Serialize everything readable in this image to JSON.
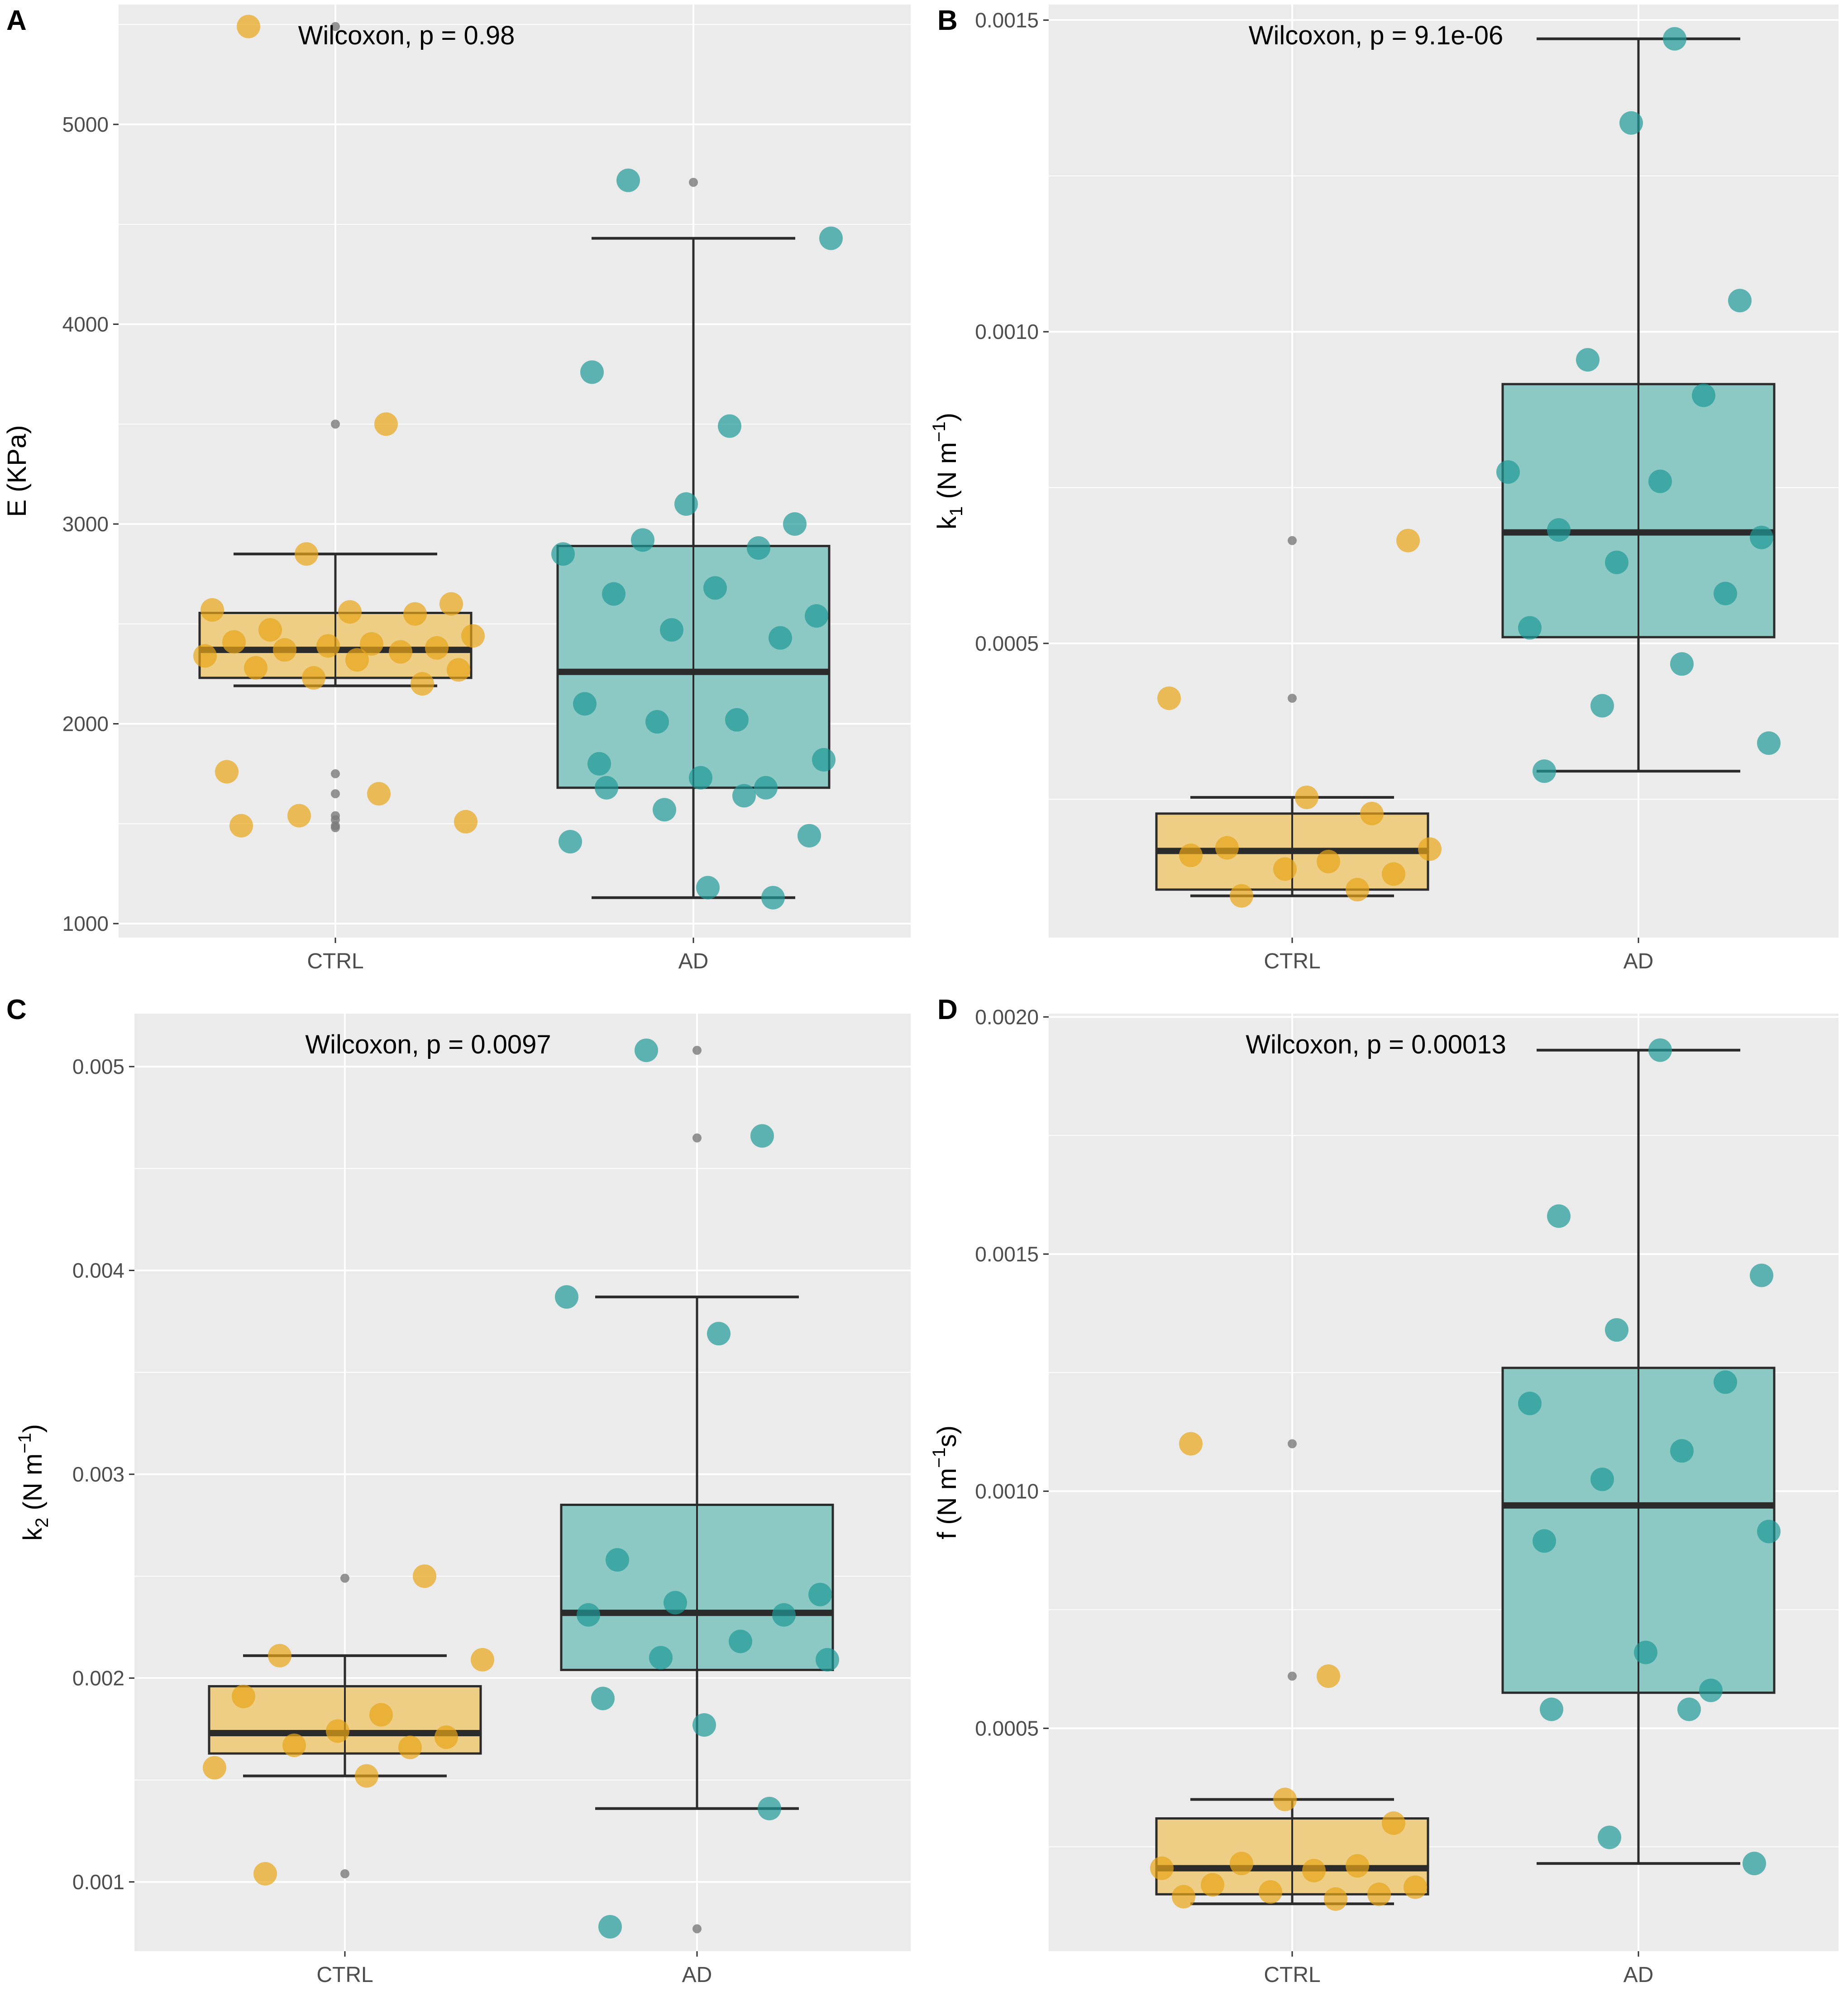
{
  "figure": {
    "panels": [
      {
        "letter": "A",
        "y_label": "E (KPa)",
        "y_label_sub": "",
        "y_label_sup": "",
        "y_label_tail": "",
        "annotation": "Wilcoxon, p = 0.98"
      },
      {
        "letter": "B",
        "y_label": "k",
        "y_label_sub": "1",
        "y_label_mid": " (N m",
        "y_label_sup": "−1",
        "y_label_tail": ")",
        "annotation": "Wilcoxon, p = 9.1e-06"
      },
      {
        "letter": "C",
        "y_label": "k",
        "y_label_sub": "2",
        "y_label_mid": " (N m",
        "y_label_sup": "−1",
        "y_label_tail": ")",
        "annotation": "Wilcoxon, p = 0.0097"
      },
      {
        "letter": "D",
        "y_label": "f",
        "y_label_sub": "",
        "y_label_mid": " (N m",
        "y_label_sup": "−1",
        "y_label_tail": "s)",
        "annotation": "Wilcoxon, p = 0.00013"
      }
    ]
  },
  "colors": {
    "ctrl": "#E8A517",
    "ctrl_box": "#EECD85",
    "ad": "#1F9A97",
    "ad_box": "#8CC8C4",
    "panel_bg": "#EBEBEB",
    "grid": "#FFFFFF",
    "outlier": "#7A7A7A",
    "line": "#2B2B2B"
  },
  "chart_data": [
    {
      "type": "box+jitter",
      "title": "Wilcoxon, p = 0.98",
      "ylabel": "E (KPa)",
      "categories": [
        "CTRL",
        "AD"
      ],
      "ylim": [
        930,
        5600
      ],
      "yticks": [
        1000,
        2000,
        3000,
        4000,
        5000
      ],
      "ytick_labels": [
        "1000",
        "2000",
        "3000",
        "4000",
        "5000"
      ],
      "boxes": [
        {
          "group": "CTRL",
          "lower_whisker": 2190,
          "q1": 2230,
          "median": 2370,
          "q3": 2555,
          "upper_whisker": 2850,
          "outliers": [
            5490,
            3500,
            1750,
            1650,
            1540,
            1520,
            1490,
            1480
          ]
        },
        {
          "group": "AD",
          "lower_whisker": 1130,
          "q1": 1680,
          "median": 2260,
          "q3": 2890,
          "upper_whisker": 4430,
          "outliers": [
            4710
          ]
        }
      ],
      "points": [
        {
          "group": "CTRL",
          "values": [
            5490,
            3500,
            2850,
            2600,
            2570,
            2560,
            2550,
            2470,
            2440,
            2410,
            2400,
            2390,
            2380,
            2370,
            2360,
            2340,
            2320,
            2280,
            2270,
            2230,
            2200,
            1760,
            1650,
            1540,
            1510,
            1490
          ]
        },
        {
          "group": "AD",
          "values": [
            4720,
            4430,
            3760,
            3490,
            3100,
            3000,
            2920,
            2880,
            2850,
            2680,
            2650,
            2540,
            2470,
            2430,
            2100,
            2020,
            2010,
            1820,
            1800,
            1730,
            1680,
            1680,
            1640,
            1570,
            1440,
            1410,
            1180,
            1130
          ]
        }
      ]
    },
    {
      "type": "box+jitter",
      "title": "Wilcoxon, p = 9.1e-06",
      "ylabel": "k1 (N m−1)",
      "categories": [
        "CTRL",
        "AD"
      ],
      "ylim": [
        2.8e-05,
        0.001525
      ],
      "yticks": [
        0.0005,
        0.001,
        0.0015
      ],
      "ytick_labels": [
        "0.0005",
        "0.0010",
        "0.0015"
      ],
      "boxes": [
        {
          "group": "CTRL",
          "lower_whisker": 9.5e-05,
          "q1": 0.000105,
          "median": 0.000167,
          "q3": 0.000227,
          "upper_whisker": 0.000253,
          "outliers": [
            0.000665,
            0.000412
          ]
        },
        {
          "group": "AD",
          "lower_whisker": 0.000295,
          "q1": 0.00051,
          "median": 0.000678,
          "q3": 0.000916,
          "upper_whisker": 0.00147,
          "outliers": []
        }
      ],
      "points": [
        {
          "group": "CTRL",
          "values": [
            0.000665,
            0.000412,
            0.000253,
            0.000227,
            0.000172,
            0.00017,
            0.00016,
            0.00015,
            0.000138,
            0.00013,
            9.5e-05,
            0.000105
          ]
        },
        {
          "group": "AD",
          "values": [
            0.00147,
            0.001335,
            0.00105,
            0.000955,
            0.000898,
            0.000775,
            0.00076,
            0.000682,
            0.00067,
            0.00063,
            0.00058,
            0.000525,
            0.000467,
            0.0004,
            0.00034,
            0.000295
          ]
        }
      ]
    },
    {
      "type": "box+jitter",
      "title": "Wilcoxon, p = 0.0097",
      "ylabel": "k2 (N m−1)",
      "categories": [
        "CTRL",
        "AD"
      ],
      "ylim": [
        0.00066,
        0.00526
      ],
      "yticks": [
        0.001,
        0.002,
        0.003,
        0.004,
        0.005
      ],
      "ytick_labels": [
        "0.001",
        "0.002",
        "0.003",
        "0.004",
        "0.005"
      ],
      "boxes": [
        {
          "group": "CTRL",
          "lower_whisker": 0.00152,
          "q1": 0.00163,
          "median": 0.00173,
          "q3": 0.00196,
          "upper_whisker": 0.00211,
          "outliers": [
            0.00249,
            0.00104
          ]
        },
        {
          "group": "AD",
          "lower_whisker": 0.00136,
          "q1": 0.00204,
          "median": 0.00232,
          "q3": 0.00285,
          "upper_whisker": 0.00387,
          "outliers": [
            0.00508,
            0.00465,
            0.00077
          ]
        }
      ],
      "points": [
        {
          "group": "CTRL",
          "values": [
            0.0025,
            0.00211,
            0.00209,
            0.00191,
            0.00182,
            0.00174,
            0.00171,
            0.00167,
            0.00166,
            0.00156,
            0.00152,
            0.00104
          ]
        },
        {
          "group": "AD",
          "values": [
            0.00508,
            0.00466,
            0.00387,
            0.00369,
            0.00258,
            0.00241,
            0.00237,
            0.00231,
            0.00231,
            0.00218,
            0.0021,
            0.00209,
            0.0019,
            0.00177,
            0.00136,
            0.00078
          ]
        }
      ]
    },
    {
      "type": "box+jitter",
      "title": "Wilcoxon, p = 0.00013",
      "ylabel": "f (N m−1 s)",
      "categories": [
        "CTRL",
        "AD"
      ],
      "ylim": [
        3e-05,
        0.002007
      ],
      "yticks": [
        0.0005,
        0.001,
        0.0015,
        0.002
      ],
      "ytick_labels": [
        "0.0005",
        "0.0010",
        "0.0015",
        "0.0020"
      ],
      "boxes": [
        {
          "group": "CTRL",
          "lower_whisker": 0.00013,
          "q1": 0.00015,
          "median": 0.000205,
          "q3": 0.00031,
          "upper_whisker": 0.00035,
          "outliers": [
            0.0011,
            0.00061
          ]
        },
        {
          "group": "AD",
          "lower_whisker": 0.000215,
          "q1": 0.000575,
          "median": 0.00097,
          "q3": 0.00126,
          "upper_whisker": 0.00193,
          "outliers": []
        }
      ],
      "points": [
        {
          "group": "CTRL",
          "values": [
            0.0011,
            0.00061,
            0.00035,
            0.0003,
            0.000215,
            0.00021,
            0.000205,
            0.0002,
            0.00017,
            0.000165,
            0.000155,
            0.00015,
            0.000145,
            0.00014
          ]
        },
        {
          "group": "AD",
          "values": [
            0.00193,
            0.00158,
            0.001455,
            0.00134,
            0.00123,
            0.001185,
            0.001085,
            0.001025,
            0.000915,
            0.000895,
            0.00066,
            0.00058,
            0.00054,
            0.00054,
            0.00027,
            0.000215
          ]
        }
      ]
    }
  ]
}
